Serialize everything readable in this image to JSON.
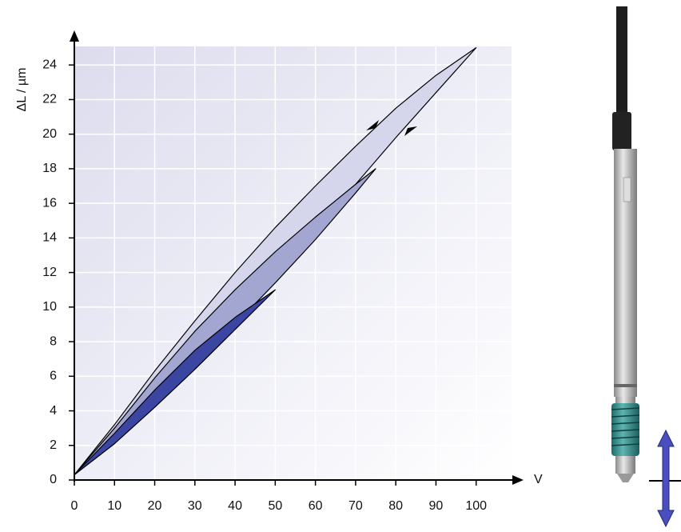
{
  "chart_data": {
    "type": "area",
    "y_label": "ΔL / µm",
    "x_label": "V",
    "xlim": [
      0,
      111
    ],
    "ylim": [
      0,
      26
    ],
    "xticks": [
      0,
      10,
      20,
      30,
      40,
      50,
      60,
      70,
      80,
      90,
      100
    ],
    "yticks": [
      0,
      2,
      4,
      6,
      8,
      10,
      12,
      14,
      16,
      18,
      20,
      22,
      24
    ],
    "grid": true,
    "series": [
      {
        "color": "#d5d6ec",
        "x": [
          0,
          10,
          20,
          30,
          40,
          50,
          60,
          70,
          80,
          90,
          100,
          90,
          80,
          70,
          60,
          50,
          40,
          30,
          20,
          10,
          0
        ],
        "values": [
          0.3,
          2.3,
          4.6,
          7,
          9.4,
          11.9,
          14.5,
          17.1,
          19.8,
          22.4,
          25,
          23.4,
          21.5,
          19.3,
          17,
          14.6,
          12,
          9.2,
          6.3,
          3.2,
          0.3
        ]
      },
      {
        "color": "#a4a6d2",
        "x": [
          0,
          10,
          20,
          30,
          40,
          50,
          60,
          70,
          75,
          70,
          60,
          50,
          40,
          30,
          20,
          10,
          0
        ],
        "values": [
          0.3,
          2.2,
          4.4,
          6.7,
          9,
          11.4,
          13.9,
          16.6,
          18,
          17.1,
          15.2,
          13.2,
          11,
          8.6,
          5.9,
          3,
          0.3
        ]
      },
      {
        "color": "#3b45a2",
        "x": [
          0,
          10,
          20,
          30,
          40,
          50,
          40,
          30,
          20,
          10,
          0
        ],
        "values": [
          0.3,
          2.1,
          4.2,
          6.4,
          8.7,
          11,
          9.4,
          7.5,
          5.2,
          2.7,
          0.3
        ]
      }
    ]
  }
}
